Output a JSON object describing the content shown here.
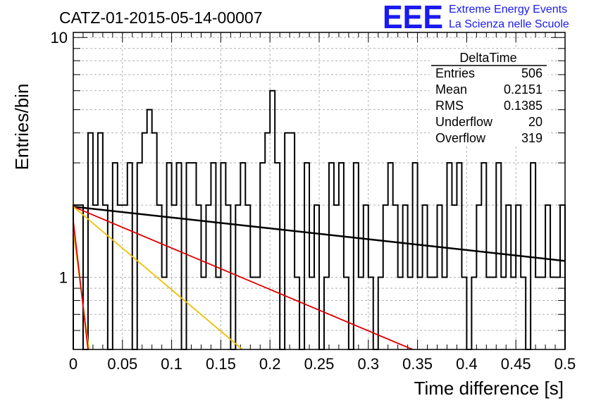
{
  "header": {
    "title": "CATZ-01-2015-05-14-00007",
    "logo": {
      "acronym": "EEE",
      "line1": "Extreme Energy Events",
      "line2": "La Scienza nelle Scuole",
      "color": "#1a1af0"
    }
  },
  "stats_box": {
    "name": "DeltaTime",
    "rows": [
      {
        "label": "Entries",
        "value": "506"
      },
      {
        "label": "Mean",
        "value": "0.2151"
      },
      {
        "label": "RMS",
        "value": "0.1385"
      },
      {
        "label": "Underflow",
        "value": "20"
      },
      {
        "label": "Overflow",
        "value": "319"
      }
    ]
  },
  "chart_data": {
    "type": "line",
    "title": "CATZ-01-2015-05-14-00007",
    "xlabel": "Time difference [s]",
    "ylabel": "Entries/bin",
    "xlim": [
      0,
      0.5
    ],
    "ylim": [
      0.5,
      10.5
    ],
    "yscale": "log",
    "grid": true,
    "x_ticks": [
      0,
      0.05,
      0.1,
      0.15,
      0.2,
      0.25,
      0.3,
      0.35,
      0.4,
      0.45,
      0.5
    ],
    "x_tick_labels": [
      "0",
      "0.05",
      "0.1",
      "0.15",
      "0.2",
      "0.25",
      "0.3",
      "0.35",
      "0.4",
      "0.45",
      "0.5"
    ],
    "y_ticks": [
      1,
      10
    ],
    "y_tick_labels": [
      "1",
      "10"
    ],
    "histogram": {
      "name": "DeltaTime",
      "color": "#000000",
      "bin_width": 0.005,
      "counts": [
        2,
        2,
        0,
        4,
        2,
        4,
        2,
        0,
        3,
        2,
        2,
        3,
        0,
        3,
        4,
        5,
        4,
        2,
        1,
        3,
        2,
        3,
        0,
        3,
        3,
        2,
        1,
        2,
        3,
        1,
        3,
        2,
        0,
        2,
        3,
        2,
        1,
        1,
        3,
        4,
        6,
        3,
        0,
        4,
        4,
        1,
        0,
        3,
        1,
        2,
        0,
        1,
        3,
        2,
        3,
        1,
        0,
        3,
        1,
        2,
        1,
        0,
        1,
        2,
        3,
        2,
        1,
        2,
        1,
        3,
        1,
        2,
        1,
        1,
        2,
        1,
        3,
        2,
        3,
        1,
        0,
        1,
        2,
        3,
        1,
        1,
        3,
        1,
        2,
        1,
        2,
        1,
        0,
        3,
        1,
        1,
        2,
        1,
        1,
        2
      ]
    },
    "series": [
      {
        "color": "#000000",
        "x": [
          0,
          0.5
        ],
        "y": [
          1.97,
          1.17
        ]
      },
      {
        "color": "#e00000",
        "x": [
          0,
          0.345
        ],
        "y": [
          1.97,
          0.5
        ]
      },
      {
        "color": "#f0c000",
        "x": [
          0,
          0.172
        ],
        "y": [
          1.97,
          0.5
        ]
      },
      {
        "color": "#f0c000",
        "x": [
          0,
          0.016
        ],
        "y": [
          1.55,
          0.5
        ]
      },
      {
        "color": "#e00000",
        "x": [
          0,
          0.015
        ],
        "y": [
          1.72,
          0.5
        ]
      }
    ]
  }
}
